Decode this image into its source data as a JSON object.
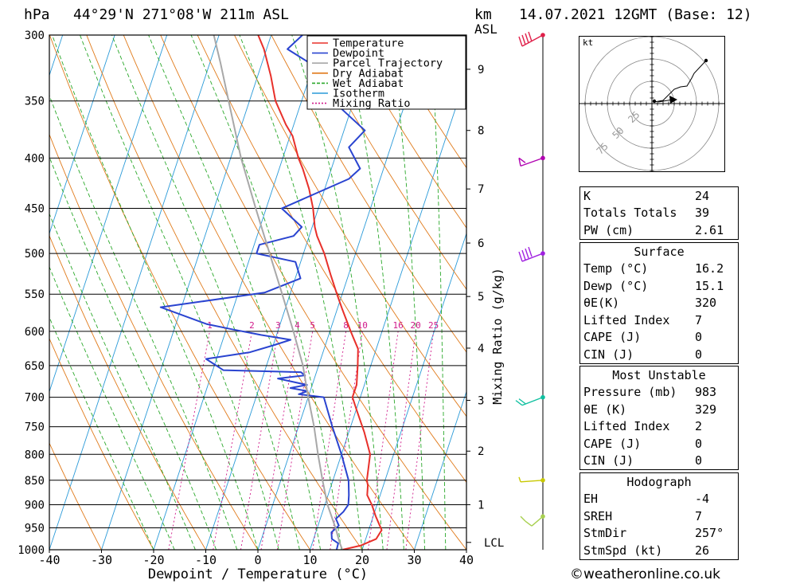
{
  "header": {
    "pressure_unit": "hPa",
    "location": "44°29'N  271°08'W  211m  ASL",
    "km_label": "km",
    "asl_label": "ASL",
    "datetime": "14.07.2021  12GMT  (Base: 12)"
  },
  "chart_data": {
    "type": "line",
    "subtype": "skew-t log-p",
    "xlabel": "Dewpoint / Temperature (°C)",
    "ylabel": "hPa",
    "secondary_ylabel": "Mixing Ratio (g/kg)",
    "xlim": [
      -40,
      40
    ],
    "ylim": [
      1000,
      300
    ],
    "x_ticks": [
      -40,
      -30,
      -20,
      -10,
      0,
      10,
      20,
      30,
      40
    ],
    "y_ticks": [
      300,
      350,
      400,
      450,
      500,
      550,
      600,
      650,
      700,
      750,
      800,
      850,
      900,
      950,
      1000
    ],
    "km_ticks": [
      {
        "km": "1",
        "p": 900
      },
      {
        "km": "2",
        "p": 794
      },
      {
        "km": "3",
        "p": 705
      },
      {
        "km": "4",
        "p": 624
      },
      {
        "km": "5",
        "p": 553
      },
      {
        "km": "6",
        "p": 488
      },
      {
        "km": "7",
        "p": 430
      },
      {
        "km": "8",
        "p": 375
      },
      {
        "km": "9",
        "p": 325
      }
    ],
    "lcl_label": "LCL",
    "lcl_p": 983,
    "legend": {
      "placement": "top-right",
      "entries": [
        {
          "name": "Temperature",
          "color": "#e8302a"
        },
        {
          "name": "Dewpoint",
          "color": "#2a44d0"
        },
        {
          "name": "Parcel Trajectory",
          "color": "#a8a8a8"
        },
        {
          "name": "Dry Adiabat",
          "color": "#e07a1a"
        },
        {
          "name": "Wet Adiabat",
          "color": "#2aa82a"
        },
        {
          "name": "Isotherm",
          "color": "#2a9ad8"
        },
        {
          "name": "Mixing Ratio",
          "color": "#d01a8a"
        }
      ]
    },
    "mixing_ratio_labels": [
      "1",
      "2",
      "3",
      "4",
      "5",
      "8",
      "10",
      "16",
      "20",
      "25"
    ],
    "mixing_ratio_label_p": 600,
    "series": [
      {
        "name": "Temperature",
        "color": "#e8302a",
        "points": [
          [
            1000,
            16.2
          ],
          [
            990,
            19.5
          ],
          [
            975,
            22
          ],
          [
            955,
            22.5
          ],
          [
            925,
            20.5
          ],
          [
            900,
            19
          ],
          [
            880,
            17.5
          ],
          [
            860,
            17
          ],
          [
            850,
            16.5
          ],
          [
            800,
            15.5
          ],
          [
            760,
            13
          ],
          [
            720,
            10
          ],
          [
            700,
            8.5
          ],
          [
            680,
            8.5
          ],
          [
            650,
            7.5
          ],
          [
            625,
            6.5
          ],
          [
            610,
            5
          ],
          [
            600,
            4
          ],
          [
            570,
            1
          ],
          [
            550,
            -1
          ],
          [
            525,
            -3.5
          ],
          [
            500,
            -6
          ],
          [
            480,
            -8.5
          ],
          [
            470,
            -9.5
          ],
          [
            450,
            -11
          ],
          [
            430,
            -13
          ],
          [
            410,
            -15.5
          ],
          [
            400,
            -17
          ],
          [
            380,
            -19.5
          ],
          [
            370,
            -21.5
          ],
          [
            350,
            -25
          ],
          [
            330,
            -27.5
          ],
          [
            310,
            -30.5
          ],
          [
            300,
            -32.5
          ]
        ]
      },
      {
        "name": "Dewpoint",
        "color": "#2a44d0",
        "points": [
          [
            1000,
            15.1
          ],
          [
            985,
            15
          ],
          [
            975,
            13.5
          ],
          [
            960,
            13
          ],
          [
            945,
            14
          ],
          [
            930,
            13
          ],
          [
            915,
            14
          ],
          [
            900,
            14.5
          ],
          [
            880,
            14
          ],
          [
            850,
            13
          ],
          [
            800,
            10
          ],
          [
            750,
            6.5
          ],
          [
            700,
            3
          ],
          [
            695,
            -2
          ],
          [
            690,
            -0.5
          ],
          [
            685,
            -4
          ],
          [
            680,
            -1
          ],
          [
            675,
            -4
          ],
          [
            670,
            -7
          ],
          [
            665,
            -2
          ],
          [
            660,
            -3
          ],
          [
            657,
            -18
          ],
          [
            640,
            -22
          ],
          [
            630,
            -14
          ],
          [
            620,
            -10
          ],
          [
            612,
            -7
          ],
          [
            605,
            -13
          ],
          [
            597,
            -19
          ],
          [
            590,
            -24
          ],
          [
            567,
            -34
          ],
          [
            560,
            -27
          ],
          [
            548,
            -15
          ],
          [
            530,
            -9
          ],
          [
            510,
            -11
          ],
          [
            500,
            -19
          ],
          [
            490,
            -19
          ],
          [
            480,
            -13
          ],
          [
            470,
            -12
          ],
          [
            450,
            -17
          ],
          [
            420,
            -6
          ],
          [
            410,
            -4.5
          ],
          [
            390,
            -8
          ],
          [
            375,
            -6
          ],
          [
            350,
            -14
          ],
          [
            340,
            -12
          ],
          [
            330,
            -15
          ],
          [
            320,
            -21
          ],
          [
            310,
            -26
          ],
          [
            300,
            -24
          ]
        ]
      },
      {
        "name": "Parcel Trajectory",
        "color": "#a8a8a8",
        "points": [
          [
            1000,
            16.2
          ],
          [
            983,
            15.2
          ],
          [
            950,
            13.5
          ],
          [
            900,
            10.5
          ],
          [
            850,
            8
          ],
          [
            800,
            5.5
          ],
          [
            750,
            3
          ],
          [
            700,
            0
          ],
          [
            650,
            -3
          ],
          [
            600,
            -7
          ],
          [
            550,
            -11.5
          ],
          [
            500,
            -16.5
          ],
          [
            450,
            -22
          ],
          [
            400,
            -28
          ],
          [
            350,
            -34
          ],
          [
            320,
            -38
          ],
          [
            300,
            -41
          ]
        ]
      }
    ]
  },
  "winds": {
    "color": "#b000b0",
    "barbs": [
      {
        "p": 300,
        "label": "300 hPa wind"
      },
      {
        "p": 400,
        "label": "400 hPa wind"
      },
      {
        "p": 500,
        "label": "500 hPa wind"
      },
      {
        "p": 700,
        "label": "700 hPa wind"
      },
      {
        "p": 850,
        "label": "850 hPa wind"
      },
      {
        "p": 925,
        "label": "925 hPa wind"
      }
    ]
  },
  "hodograph": {
    "unit": "kt",
    "rings": [
      "25",
      "50",
      "75"
    ]
  },
  "indices": {
    "rows": [
      {
        "k": "K",
        "v": "24"
      },
      {
        "k": "Totals Totals",
        "v": "39"
      },
      {
        "k": "PW (cm)",
        "v": "2.61"
      }
    ]
  },
  "surface": {
    "title": "Surface",
    "rows": [
      {
        "k": "Temp (°C)",
        "v": "16.2"
      },
      {
        "k": "Dewp (°C)",
        "v": "15.1"
      },
      {
        "k": "θE(K)",
        "v": "320"
      },
      {
        "k": "Lifted Index",
        "v": "7"
      },
      {
        "k": "CAPE (J)",
        "v": "0"
      },
      {
        "k": "CIN (J)",
        "v": "0"
      }
    ]
  },
  "most_unstable": {
    "title": "Most Unstable",
    "rows": [
      {
        "k": "Pressure (mb)",
        "v": "983"
      },
      {
        "k": "θE (K)",
        "v": "329"
      },
      {
        "k": "Lifted Index",
        "v": "2"
      },
      {
        "k": "CAPE (J)",
        "v": "0"
      },
      {
        "k": "CIN (J)",
        "v": "0"
      }
    ]
  },
  "hodo_params": {
    "title": "Hodograph",
    "rows": [
      {
        "k": "EH",
        "v": "-4"
      },
      {
        "k": "SREH",
        "v": "7"
      },
      {
        "k": "StmDir",
        "v": "257°"
      },
      {
        "k": "StmSpd (kt)",
        "v": "26"
      }
    ]
  },
  "credit": "©weatheronline.co.uk"
}
